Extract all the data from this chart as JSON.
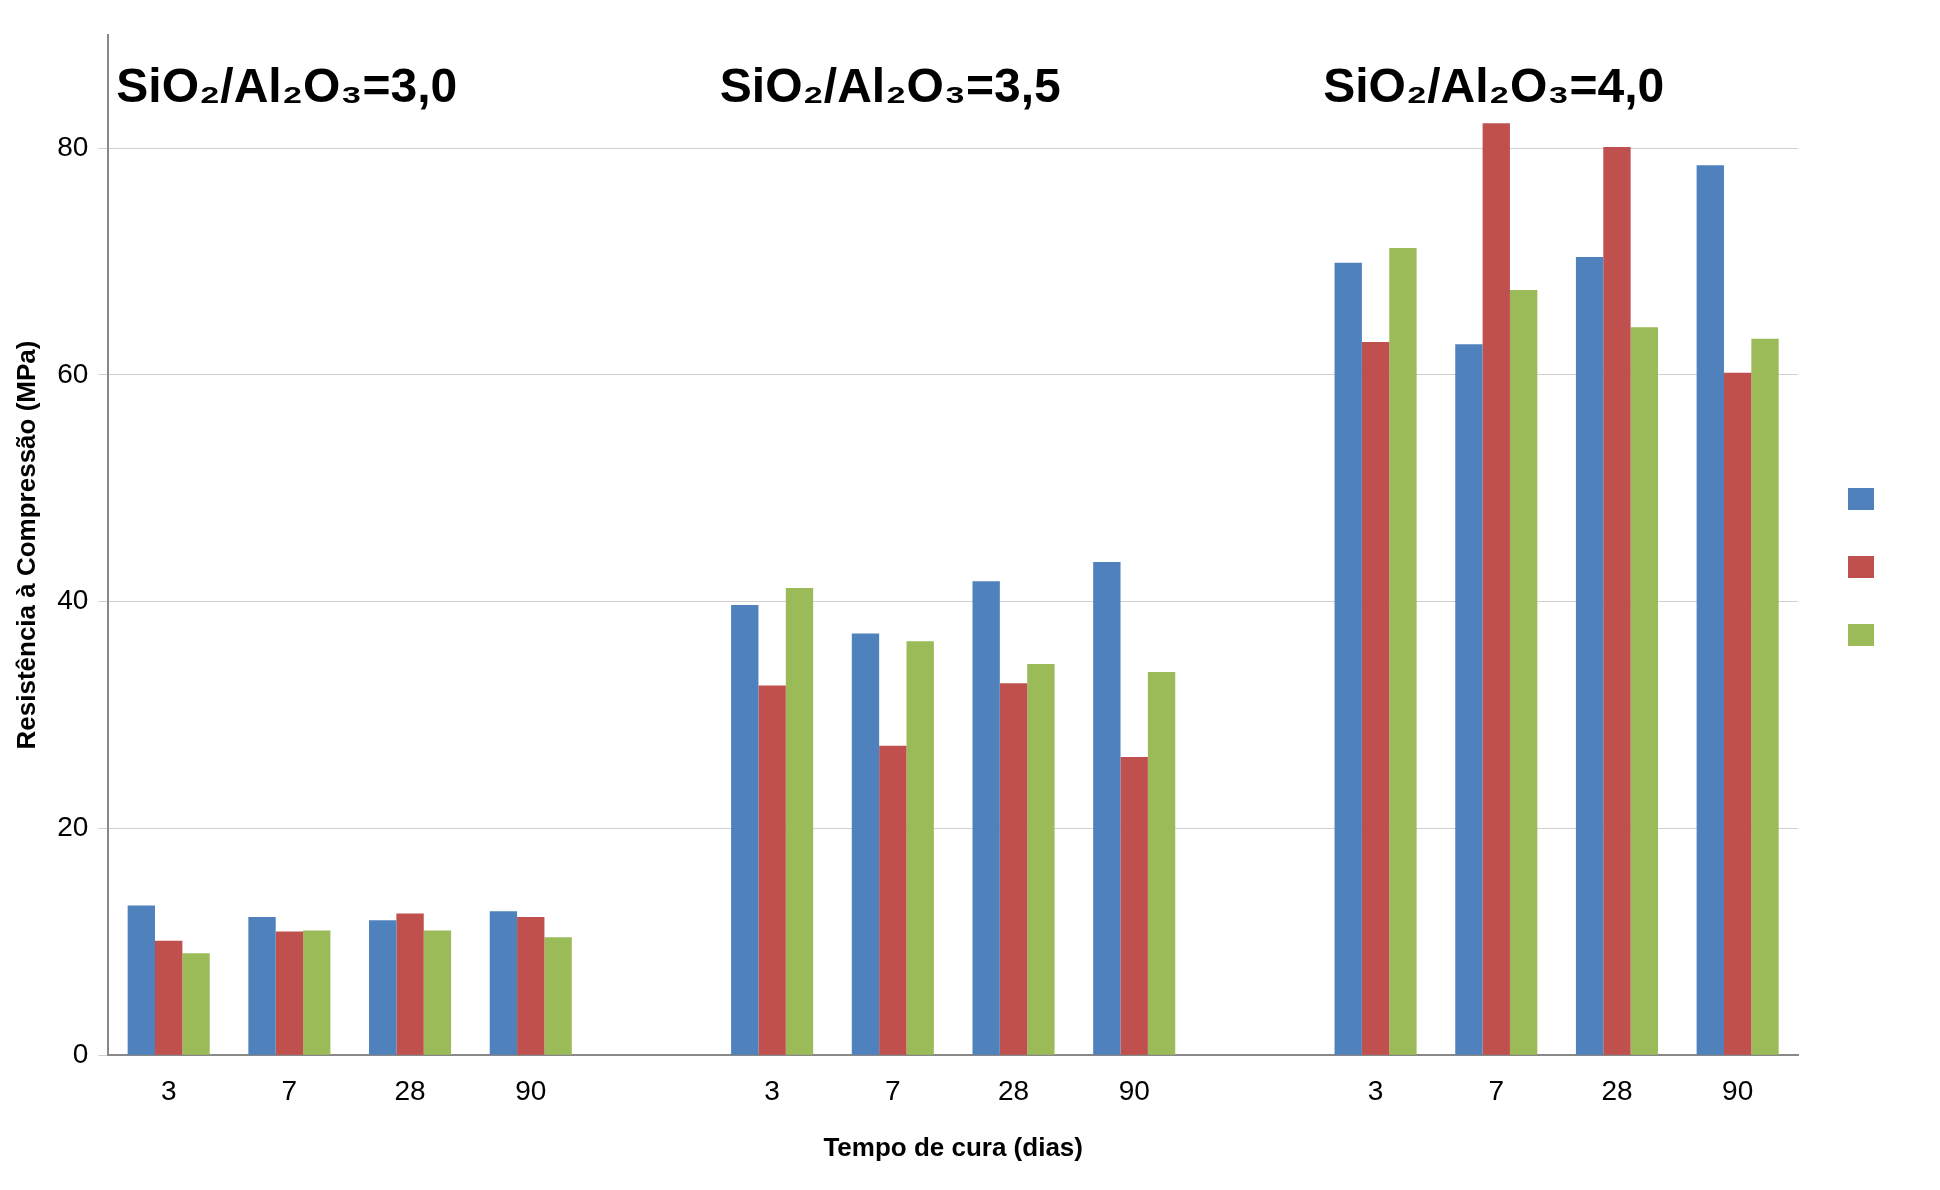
{
  "chart_data": {
    "type": "bar",
    "xlabel": "Tempo de cura (dias)",
    "ylabel": "Resistência à Compressão (MPa)",
    "categories": [
      "3",
      "7",
      "28",
      "90",
      null,
      "3",
      "7",
      "28",
      "90",
      null,
      "3",
      "7",
      "28",
      "90"
    ],
    "series": [
      {
        "color": "#4f81bd",
        "values": [
          13.2,
          12.2,
          11.9,
          12.7,
          null,
          39.7,
          37.2,
          41.8,
          43.5,
          null,
          69.9,
          62.7,
          70.4,
          78.5
        ]
      },
      {
        "color": "#c0504d",
        "values": [
          10.1,
          10.9,
          12.5,
          12.2,
          null,
          32.6,
          27.3,
          32.8,
          26.3,
          null,
          62.9,
          82.2,
          80.1,
          60.2
        ]
      },
      {
        "color": "#9bbb59",
        "values": [
          9.0,
          11.0,
          11.0,
          10.4,
          null,
          41.2,
          36.5,
          34.5,
          33.8,
          null,
          71.2,
          67.5,
          64.2,
          63.2
        ]
      }
    ],
    "annotations": [
      "SiO₂/Al₂O₃=3,0",
      "SiO₂/Al₂O₃=3,5",
      "SiO₂/Al₂O₃=4,0"
    ],
    "ylim": [
      0,
      90
    ],
    "yticks": [
      0,
      20,
      40,
      60,
      80
    ],
    "grid": "y"
  }
}
